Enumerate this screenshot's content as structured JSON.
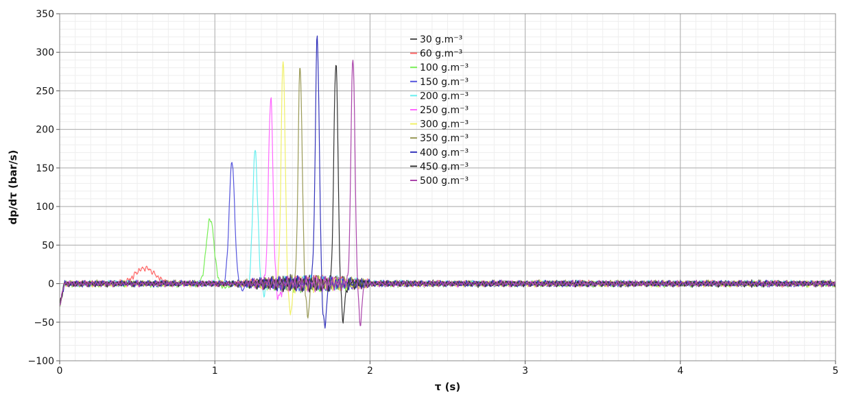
{
  "chart_data": {
    "type": "line",
    "title": "",
    "xlabel": "τ (s)",
    "ylabel": "dp/dτ (bar/s)",
    "xlim": [
      0,
      5
    ],
    "ylim": [
      -100,
      350
    ],
    "x_ticks": [
      0,
      1,
      2,
      3,
      4,
      5
    ],
    "y_ticks": [
      -100,
      -50,
      0,
      50,
      100,
      150,
      200,
      250,
      300,
      350
    ],
    "grid": true,
    "legend_position": "top-center",
    "series": [
      {
        "name": "30 g.m⁻³",
        "unit_sup": "-3",
        "color": "#505050",
        "peak_t": 0,
        "peak": 0,
        "width": 0,
        "undershoot": 0
      },
      {
        "name": "60 g.m⁻³",
        "unit_sup": "-3",
        "color": "#ff6666",
        "peak_t": 0.55,
        "peak": 20,
        "width": 0.09,
        "undershoot": 0
      },
      {
        "name": "100 g.m⁻³",
        "unit_sup": "-3",
        "color": "#77ee55",
        "peak_t": 0.97,
        "peak": 84,
        "width": 0.035,
        "undershoot": -5
      },
      {
        "name": "150 g.m⁻³",
        "unit_sup": "-3",
        "color": "#5555dd",
        "peak_t": 1.11,
        "peak": 158,
        "width": 0.025,
        "undershoot": -8
      },
      {
        "name": "200 g.m⁻³",
        "unit_sup": "-3",
        "color": "#66eeee",
        "peak_t": 1.26,
        "peak": 174,
        "width": 0.022,
        "undershoot": -12
      },
      {
        "name": "250 g.m⁻³",
        "unit_sup": "-3",
        "color": "#ff66ff",
        "peak_t": 1.36,
        "peak": 242,
        "width": 0.02,
        "undershoot": -20
      },
      {
        "name": "300 g.m⁻³",
        "unit_sup": "-3",
        "color": "#f0f066",
        "peak_t": 1.44,
        "peak": 293,
        "width": 0.018,
        "undershoot": -38
      },
      {
        "name": "350 g.m⁻³",
        "unit_sup": "-3",
        "color": "#999955",
        "peak_t": 1.55,
        "peak": 282,
        "width": 0.018,
        "undershoot": -40
      },
      {
        "name": "400 g.m⁻³",
        "unit_sup": "-3",
        "color": "#3333bb",
        "peak_t": 1.66,
        "peak": 317,
        "width": 0.018,
        "undershoot": -58
      },
      {
        "name": "450 g.m⁻³",
        "unit_sup": "-3",
        "color": "#333333",
        "peak_t": 1.78,
        "peak": 292,
        "width": 0.018,
        "undershoot": -45
      },
      {
        "name": "500 g.m⁻³",
        "unit_sup": "-3",
        "color": "#aa44aa",
        "peak_t": 1.89,
        "peak": 295,
        "width": 0.018,
        "undershoot": -50
      }
    ]
  }
}
